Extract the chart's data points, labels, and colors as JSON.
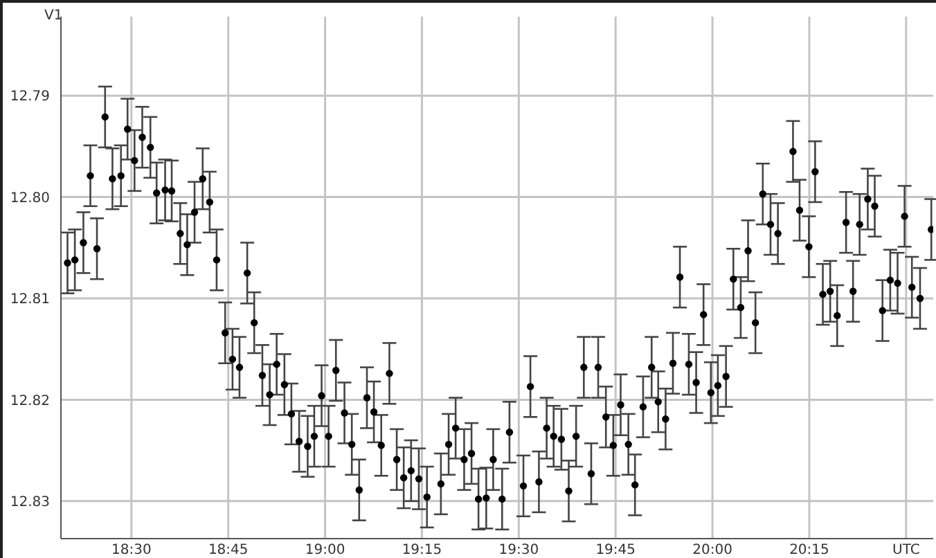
{
  "chart_data": {
    "type": "scatter",
    "ylabel": "V1",
    "x": [
      18.335,
      18.354,
      18.376,
      18.394,
      18.411,
      18.432,
      18.451,
      18.473,
      18.49,
      18.508,
      18.528,
      18.549,
      18.565,
      18.587,
      18.604,
      18.626,
      18.644,
      18.663,
      18.684,
      18.702,
      18.72,
      18.742,
      18.761,
      18.779,
      18.799,
      18.817,
      18.838,
      18.857,
      18.875,
      18.895,
      18.913,
      18.933,
      18.955,
      18.972,
      18.991,
      19.009,
      19.028,
      19.05,
      19.069,
      19.088,
      19.108,
      19.126,
      19.145,
      19.166,
      19.185,
      19.203,
      19.222,
      19.242,
      19.263,
      19.299,
      19.319,
      19.337,
      19.359,
      19.378,
      19.396,
      19.416,
      19.434,
      19.457,
      19.476,
      19.512,
      19.53,
      19.552,
      19.572,
      19.59,
      19.61,
      19.629,
      19.648,
      19.668,
      19.687,
      19.705,
      19.725,
      19.744,
      19.763,
      19.783,
      19.8,
      19.821,
      19.843,
      19.86,
      19.879,
      19.898,
      19.916,
      19.939,
      19.958,
      19.977,
      19.996,
      20.014,
      20.035,
      20.054,
      20.073,
      20.092,
      20.111,
      20.13,
      20.15,
      20.169,
      20.208,
      20.225,
      20.249,
      20.265,
      20.285,
      20.304,
      20.322,
      20.345,
      20.363,
      20.38,
      20.401,
      20.419,
      20.439,
      20.459,
      20.478,
      20.496,
      20.515,
      20.536,
      20.565
    ],
    "values": [
      12.8065,
      12.8062,
      12.8045,
      12.7979,
      12.8051,
      12.7921,
      12.7982,
      12.7979,
      12.7933,
      12.7964,
      12.7941,
      12.7951,
      12.7996,
      12.7993,
      12.7994,
      12.8036,
      12.8047,
      12.8015,
      12.7982,
      12.8005,
      12.8062,
      12.8134,
      12.816,
      12.8168,
      12.8075,
      12.8124,
      12.8176,
      12.8195,
      12.8165,
      12.8185,
      12.8214,
      12.8241,
      12.8246,
      12.8236,
      12.8196,
      12.8236,
      12.8171,
      12.8213,
      12.8244,
      12.8289,
      12.8198,
      12.8212,
      12.8245,
      12.8174,
      12.8259,
      12.8277,
      12.827,
      12.8278,
      12.8296,
      12.8283,
      12.8244,
      12.8228,
      12.8259,
      12.8253,
      12.8298,
      12.8297,
      12.8259,
      12.8298,
      12.8232,
      12.8285,
      12.8187,
      12.8281,
      12.8228,
      12.8236,
      12.8239,
      12.829,
      12.8236,
      12.8168,
      12.8273,
      12.8168,
      12.8217,
      12.8245,
      12.8205,
      12.8244,
      12.8284,
      12.8207,
      12.8168,
      12.8202,
      12.8219,
      12.8164,
      12.8079,
      12.8165,
      12.8183,
      12.8116,
      12.8193,
      12.8186,
      12.8177,
      12.8081,
      12.8109,
      12.8053,
      12.8124,
      12.7997,
      12.8027,
      12.8036,
      12.7955,
      12.8013,
      12.8049,
      12.7975,
      12.8096,
      12.8093,
      12.8117,
      12.8025,
      12.8093,
      12.8027,
      12.8002,
      12.8009,
      12.8112,
      12.8082,
      12.8085,
      12.8019,
      12.8089,
      12.81,
      12.8032
    ],
    "errors": [
      0.003,
      0.003,
      0.003,
      0.003,
      0.003,
      0.003,
      0.003,
      0.003,
      0.003,
      0.003,
      0.003,
      0.003,
      0.003,
      0.003,
      0.003,
      0.003,
      0.003,
      0.003,
      0.003,
      0.003,
      0.003,
      0.003,
      0.003,
      0.003,
      0.003,
      0.003,
      0.003,
      0.003,
      0.003,
      0.003,
      0.003,
      0.003,
      0.003,
      0.003,
      0.003,
      0.003,
      0.003,
      0.003,
      0.003,
      0.003,
      0.003,
      0.003,
      0.003,
      0.003,
      0.003,
      0.003,
      0.003,
      0.003,
      0.003,
      0.003,
      0.003,
      0.003,
      0.003,
      0.003,
      0.003,
      0.003,
      0.003,
      0.003,
      0.003,
      0.003,
      0.003,
      0.003,
      0.003,
      0.003,
      0.003,
      0.003,
      0.003,
      0.003,
      0.003,
      0.003,
      0.003,
      0.003,
      0.003,
      0.003,
      0.003,
      0.003,
      0.003,
      0.003,
      0.003,
      0.003,
      0.003,
      0.003,
      0.003,
      0.003,
      0.003,
      0.003,
      0.003,
      0.003,
      0.003,
      0.003,
      0.003,
      0.003,
      0.003,
      0.003,
      0.003,
      0.003,
      0.003,
      0.003,
      0.003,
      0.003,
      0.003,
      0.003,
      0.003,
      0.003,
      0.003,
      0.003,
      0.003,
      0.003,
      0.003,
      0.003,
      0.003,
      0.003,
      0.003
    ],
    "color": "#000000",
    "marker": "circle",
    "grid": true,
    "xlim": [
      18.318,
      20.57
    ],
    "xticks": [
      {
        "value": 18.5,
        "label": "18:30"
      },
      {
        "value": 18.75,
        "label": "18:45"
      },
      {
        "value": 19,
        "label": "19:00"
      },
      {
        "value": 19.25,
        "label": "19:15"
      },
      {
        "value": 19.5,
        "label": "19:30"
      },
      {
        "value": 19.75,
        "label": "19:45"
      },
      {
        "value": 20,
        "label": "20:00"
      },
      {
        "value": 20.25,
        "label": "20:15"
      },
      {
        "value": 20.5,
        "label": "UTC"
      }
    ],
    "ylim": [
      12.8337,
      12.7822
    ],
    "yticks": [
      {
        "value": 12.79,
        "label": "12.79"
      },
      {
        "value": 12.8,
        "label": "12.80"
      },
      {
        "value": 12.81,
        "label": "12.81"
      },
      {
        "value": 12.82,
        "label": "12.82"
      },
      {
        "value": 12.83,
        "label": "12.83"
      }
    ]
  }
}
